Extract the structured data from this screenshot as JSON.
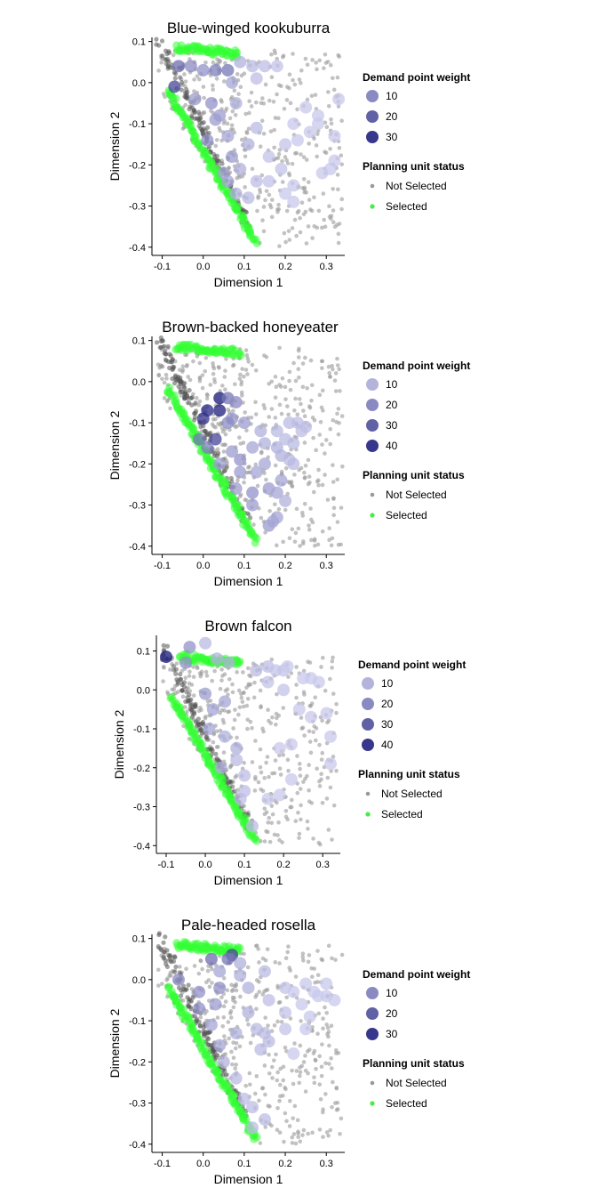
{
  "chart_data": [
    {
      "type": "scatter",
      "title": "Blue-winged kookuburra",
      "xlabel": "Dimension 1",
      "ylabel": "Dimension 2",
      "xlim": [
        -0.125,
        0.345
      ],
      "ylim": [
        -0.42,
        0.11
      ],
      "x_ticks": [
        "-0.1",
        "0.0",
        "0.1",
        "0.2",
        "0.3"
      ],
      "y_ticks": [
        "0.1",
        "0.0",
        "-0.1",
        "-0.2",
        "-0.3",
        "-0.4"
      ],
      "grid": false,
      "legend_position": "right",
      "weight_legend": {
        "title": "Demand point weight",
        "levels": [
          10,
          20,
          30
        ]
      },
      "status_legend": {
        "title": "Planning unit status",
        "items": [
          "Not Selected",
          "Selected"
        ]
      },
      "demand_points": [
        {
          "x": -0.07,
          "y": -0.01,
          "w": 30
        },
        {
          "x": -0.06,
          "y": 0.04,
          "w": 22
        },
        {
          "x": -0.03,
          "y": 0.04,
          "w": 16
        },
        {
          "x": 0.0,
          "y": 0.03,
          "w": 14
        },
        {
          "x": 0.03,
          "y": 0.03,
          "w": 18
        },
        {
          "x": 0.06,
          "y": 0.03,
          "w": 20
        },
        {
          "x": 0.09,
          "y": 0.05,
          "w": 8
        },
        {
          "x": 0.12,
          "y": 0.04,
          "w": 6
        },
        {
          "x": 0.15,
          "y": 0.04,
          "w": 5
        },
        {
          "x": 0.18,
          "y": 0.04,
          "w": 4
        },
        {
          "x": 0.13,
          "y": 0.01,
          "w": 5
        },
        {
          "x": -0.02,
          "y": -0.04,
          "w": 12
        },
        {
          "x": 0.02,
          "y": -0.05,
          "w": 14
        },
        {
          "x": 0.04,
          "y": -0.08,
          "w": 12
        },
        {
          "x": 0.08,
          "y": -0.05,
          "w": 8
        },
        {
          "x": 0.01,
          "y": -0.14,
          "w": 14
        },
        {
          "x": 0.06,
          "y": -0.13,
          "w": 10
        },
        {
          "x": 0.07,
          "y": -0.18,
          "w": 12
        },
        {
          "x": 0.11,
          "y": -0.15,
          "w": 8
        },
        {
          "x": 0.13,
          "y": -0.11,
          "w": 6
        },
        {
          "x": 0.16,
          "y": -0.18,
          "w": 4
        },
        {
          "x": 0.2,
          "y": -0.15,
          "w": 4
        },
        {
          "x": 0.23,
          "y": -0.14,
          "w": 3
        },
        {
          "x": 0.26,
          "y": -0.12,
          "w": 3
        },
        {
          "x": 0.28,
          "y": -0.1,
          "w": 3
        },
        {
          "x": 0.32,
          "y": -0.13,
          "w": 3
        },
        {
          "x": 0.25,
          "y": -0.06,
          "w": 3
        },
        {
          "x": 0.28,
          "y": -0.08,
          "w": 3
        },
        {
          "x": 0.33,
          "y": -0.04,
          "w": 3
        },
        {
          "x": 0.22,
          "y": -0.1,
          "w": 3
        },
        {
          "x": 0.32,
          "y": -0.19,
          "w": 3
        },
        {
          "x": 0.31,
          "y": -0.21,
          "w": 3
        },
        {
          "x": 0.29,
          "y": -0.22,
          "w": 3
        },
        {
          "x": 0.22,
          "y": -0.25,
          "w": 3
        },
        {
          "x": 0.2,
          "y": -0.27,
          "w": 3
        },
        {
          "x": 0.16,
          "y": -0.24,
          "w": 4
        },
        {
          "x": 0.13,
          "y": -0.24,
          "w": 5
        },
        {
          "x": 0.11,
          "y": -0.28,
          "w": 6
        },
        {
          "x": 0.08,
          "y": -0.27,
          "w": 8
        },
        {
          "x": 0.06,
          "y": -0.24,
          "w": 10
        },
        {
          "x": 0.05,
          "y": -0.22,
          "w": 10
        },
        {
          "x": 0.09,
          "y": -0.21,
          "w": 8
        },
        {
          "x": 0.22,
          "y": -0.29,
          "w": 3
        },
        {
          "x": 0.19,
          "y": -0.21,
          "w": 4
        },
        {
          "x": 0.03,
          "y": -0.09,
          "w": 12
        },
        {
          "x": 0.07,
          "y": 0.0,
          "w": 10
        }
      ]
    },
    {
      "type": "scatter",
      "title": "Brown-backed honeyeater",
      "xlabel": "Dimension 1",
      "ylabel": "Dimension 2",
      "xlim": [
        -0.125,
        0.345
      ],
      "ylim": [
        -0.42,
        0.11
      ],
      "x_ticks": [
        "-0.1",
        "0.0",
        "0.1",
        "0.2",
        "0.3"
      ],
      "y_ticks": [
        "0.1",
        "0.0",
        "-0.1",
        "-0.2",
        "-0.3",
        "-0.4"
      ],
      "grid": false,
      "legend_position": "right",
      "weight_legend": {
        "title": "Demand point weight",
        "levels": [
          10,
          20,
          30,
          40
        ]
      },
      "status_legend": {
        "title": "Planning unit status",
        "items": [
          "Not Selected",
          "Selected"
        ]
      },
      "demand_points": [
        {
          "x": 0.04,
          "y": -0.04,
          "w": 40
        },
        {
          "x": 0.04,
          "y": -0.07,
          "w": 38
        },
        {
          "x": 0.01,
          "y": -0.07,
          "w": 36
        },
        {
          "x": 0.0,
          "y": -0.09,
          "w": 34
        },
        {
          "x": 0.03,
          "y": -0.14,
          "w": 30
        },
        {
          "x": -0.01,
          "y": -0.14,
          "w": 20
        },
        {
          "x": 0.01,
          "y": -0.16,
          "w": 18
        },
        {
          "x": 0.06,
          "y": -0.04,
          "w": 20
        },
        {
          "x": 0.08,
          "y": -0.05,
          "w": 16
        },
        {
          "x": 0.07,
          "y": -0.09,
          "w": 14
        },
        {
          "x": 0.1,
          "y": -0.1,
          "w": 12
        },
        {
          "x": 0.06,
          "y": -0.1,
          "w": 16
        },
        {
          "x": 0.09,
          "y": -0.19,
          "w": 14
        },
        {
          "x": 0.09,
          "y": -0.22,
          "w": 12
        },
        {
          "x": 0.04,
          "y": -0.2,
          "w": 12
        },
        {
          "x": 0.08,
          "y": -0.26,
          "w": 12
        },
        {
          "x": 0.12,
          "y": -0.27,
          "w": 14
        },
        {
          "x": 0.12,
          "y": -0.3,
          "w": 12
        },
        {
          "x": 0.15,
          "y": -0.2,
          "w": 10
        },
        {
          "x": 0.16,
          "y": -0.26,
          "w": 12
        },
        {
          "x": 0.18,
          "y": -0.27,
          "w": 10
        },
        {
          "x": 0.19,
          "y": -0.24,
          "w": 10
        },
        {
          "x": 0.18,
          "y": -0.33,
          "w": 10
        },
        {
          "x": 0.16,
          "y": -0.35,
          "w": 12
        },
        {
          "x": 0.17,
          "y": -0.34,
          "w": 10
        },
        {
          "x": 0.2,
          "y": -0.29,
          "w": 8
        },
        {
          "x": 0.14,
          "y": -0.12,
          "w": 8
        },
        {
          "x": 0.15,
          "y": -0.15,
          "w": 8
        },
        {
          "x": 0.18,
          "y": -0.12,
          "w": 6
        },
        {
          "x": 0.18,
          "y": -0.16,
          "w": 8
        },
        {
          "x": 0.19,
          "y": -0.18,
          "w": 8
        },
        {
          "x": 0.2,
          "y": -0.14,
          "w": 6
        },
        {
          "x": 0.21,
          "y": -0.19,
          "w": 6
        },
        {
          "x": 0.22,
          "y": -0.2,
          "w": 6
        },
        {
          "x": 0.21,
          "y": -0.1,
          "w": 6
        },
        {
          "x": 0.23,
          "y": -0.1,
          "w": 5
        },
        {
          "x": 0.24,
          "y": -0.12,
          "w": 5
        },
        {
          "x": 0.25,
          "y": -0.11,
          "w": 5
        },
        {
          "x": 0.22,
          "y": -0.15,
          "w": 6
        },
        {
          "x": 0.12,
          "y": -0.16,
          "w": 10
        },
        {
          "x": 0.13,
          "y": -0.22,
          "w": 10
        },
        {
          "x": 0.07,
          "y": -0.17,
          "w": 12
        }
      ]
    },
    {
      "type": "scatter",
      "title": "Brown falcon",
      "xlabel": "Dimension 1",
      "ylabel": "Dimension 2",
      "xlim": [
        -0.125,
        0.345
      ],
      "ylim": [
        -0.42,
        0.14
      ],
      "x_ticks": [
        "-0.1",
        "0.0",
        "0.1",
        "0.2",
        "0.3"
      ],
      "y_ticks": [
        "0.1",
        "0.0",
        "-0.1",
        "-0.2",
        "-0.3",
        "-0.4"
      ],
      "grid": false,
      "legend_position": "right",
      "weight_legend": {
        "title": "Demand point weight",
        "levels": [
          10,
          20,
          30,
          40
        ]
      },
      "status_legend": {
        "title": "Planning unit status",
        "items": [
          "Not Selected",
          "Selected"
        ]
      },
      "demand_points": [
        {
          "x": -0.1,
          "y": 0.085,
          "w": 40
        },
        {
          "x": -0.04,
          "y": 0.11,
          "w": 14
        },
        {
          "x": 0.0,
          "y": 0.12,
          "w": 6
        },
        {
          "x": -0.05,
          "y": 0.07,
          "w": 14
        },
        {
          "x": 0.03,
          "y": 0.08,
          "w": 8
        },
        {
          "x": 0.06,
          "y": 0.07,
          "w": 8
        },
        {
          "x": 0.13,
          "y": 0.05,
          "w": 6
        },
        {
          "x": 0.16,
          "y": 0.06,
          "w": 5
        },
        {
          "x": 0.18,
          "y": 0.05,
          "w": 4
        },
        {
          "x": 0.2,
          "y": 0.05,
          "w": 4
        },
        {
          "x": 0.21,
          "y": 0.06,
          "w": 3
        },
        {
          "x": 0.25,
          "y": 0.03,
          "w": 3
        },
        {
          "x": 0.27,
          "y": 0.03,
          "w": 3
        },
        {
          "x": 0.29,
          "y": 0.02,
          "w": 3
        },
        {
          "x": 0.16,
          "y": 0.02,
          "w": 4
        },
        {
          "x": 0.2,
          "y": 0.0,
          "w": 4
        },
        {
          "x": 0.24,
          "y": -0.05,
          "w": 3
        },
        {
          "x": 0.27,
          "y": -0.07,
          "w": 3
        },
        {
          "x": 0.31,
          "y": -0.06,
          "w": 3
        },
        {
          "x": 0.32,
          "y": -0.12,
          "w": 3
        },
        {
          "x": 0.32,
          "y": -0.19,
          "w": 3
        },
        {
          "x": 0.22,
          "y": -0.14,
          "w": 3
        },
        {
          "x": 0.19,
          "y": -0.15,
          "w": 3
        },
        {
          "x": 0.22,
          "y": -0.23,
          "w": 3
        },
        {
          "x": 0.19,
          "y": -0.27,
          "w": 3
        },
        {
          "x": 0.16,
          "y": -0.28,
          "w": 3
        },
        {
          "x": 0.1,
          "y": -0.22,
          "w": 5
        },
        {
          "x": 0.1,
          "y": -0.26,
          "w": 5
        },
        {
          "x": 0.09,
          "y": -0.28,
          "w": 5
        },
        {
          "x": 0.08,
          "y": -0.18,
          "w": 6
        },
        {
          "x": 0.08,
          "y": -0.15,
          "w": 8
        },
        {
          "x": 0.12,
          "y": -0.35,
          "w": 6
        },
        {
          "x": 0.0,
          "y": -0.01,
          "w": 12
        },
        {
          "x": 0.05,
          "y": -0.03,
          "w": 10
        },
        {
          "x": 0.01,
          "y": -0.1,
          "w": 10
        },
        {
          "x": 0.04,
          "y": -0.2,
          "w": 8
        },
        {
          "x": 0.05,
          "y": -0.12,
          "w": 8
        },
        {
          "x": 0.02,
          "y": -0.05,
          "w": 10
        }
      ]
    },
    {
      "type": "scatter",
      "title": "Pale-headed rosella",
      "xlabel": "Dimension 1",
      "ylabel": "Dimension 2",
      "xlim": [
        -0.125,
        0.345
      ],
      "ylim": [
        -0.42,
        0.11
      ],
      "x_ticks": [
        "-0.1",
        "0.0",
        "0.1",
        "0.2",
        "0.3"
      ],
      "y_ticks": [
        "0.1",
        "0.0",
        "-0.1",
        "-0.2",
        "-0.3",
        "-0.4"
      ],
      "grid": false,
      "legend_position": "right",
      "weight_legend": {
        "title": "Demand point weight",
        "levels": [
          10,
          20,
          30
        ]
      },
      "status_legend": {
        "title": "Planning unit status",
        "items": [
          "Not Selected",
          "Selected"
        ]
      },
      "demand_points": [
        {
          "x": 0.07,
          "y": 0.06,
          "w": 30
        },
        {
          "x": 0.02,
          "y": 0.05,
          "w": 22
        },
        {
          "x": 0.06,
          "y": 0.05,
          "w": 20
        },
        {
          "x": -0.06,
          "y": 0.0,
          "w": 16
        },
        {
          "x": -0.01,
          "y": -0.03,
          "w": 14
        },
        {
          "x": -0.01,
          "y": -0.07,
          "w": 14
        },
        {
          "x": 0.03,
          "y": -0.06,
          "w": 12
        },
        {
          "x": 0.04,
          "y": -0.02,
          "w": 14
        },
        {
          "x": 0.04,
          "y": 0.02,
          "w": 10
        },
        {
          "x": 0.09,
          "y": 0.04,
          "w": 8
        },
        {
          "x": 0.11,
          "y": -0.02,
          "w": 8
        },
        {
          "x": 0.11,
          "y": -0.08,
          "w": 8
        },
        {
          "x": 0.15,
          "y": 0.02,
          "w": 6
        },
        {
          "x": 0.16,
          "y": -0.05,
          "w": 5
        },
        {
          "x": 0.2,
          "y": -0.02,
          "w": 4
        },
        {
          "x": 0.22,
          "y": -0.03,
          "w": 3
        },
        {
          "x": 0.24,
          "y": -0.06,
          "w": 3
        },
        {
          "x": 0.25,
          "y": -0.01,
          "w": 3
        },
        {
          "x": 0.27,
          "y": -0.03,
          "w": 3
        },
        {
          "x": 0.28,
          "y": -0.04,
          "w": 3
        },
        {
          "x": 0.3,
          "y": -0.01,
          "w": 3
        },
        {
          "x": 0.3,
          "y": -0.04,
          "w": 3
        },
        {
          "x": 0.32,
          "y": -0.05,
          "w": 3
        },
        {
          "x": 0.26,
          "y": -0.09,
          "w": 3
        },
        {
          "x": 0.25,
          "y": -0.12,
          "w": 3
        },
        {
          "x": 0.2,
          "y": -0.08,
          "w": 4
        },
        {
          "x": 0.13,
          "y": -0.12,
          "w": 6
        },
        {
          "x": 0.15,
          "y": -0.13,
          "w": 6
        },
        {
          "x": 0.16,
          "y": -0.15,
          "w": 6
        },
        {
          "x": 0.14,
          "y": -0.17,
          "w": 6
        },
        {
          "x": 0.08,
          "y": -0.13,
          "w": 8
        },
        {
          "x": 0.04,
          "y": -0.16,
          "w": 10
        },
        {
          "x": 0.05,
          "y": -0.2,
          "w": 8
        },
        {
          "x": 0.08,
          "y": -0.24,
          "w": 6
        },
        {
          "x": 0.1,
          "y": -0.29,
          "w": 5
        },
        {
          "x": 0.12,
          "y": -0.31,
          "w": 5
        },
        {
          "x": 0.15,
          "y": -0.34,
          "w": 5
        },
        {
          "x": 0.12,
          "y": -0.36,
          "w": 5
        },
        {
          "x": 0.22,
          "y": -0.18,
          "w": 3
        },
        {
          "x": 0.2,
          "y": -0.12,
          "w": 4
        },
        {
          "x": 0.09,
          "y": 0.01,
          "w": 8
        },
        {
          "x": 0.02,
          "y": -0.11,
          "w": 10
        }
      ]
    }
  ]
}
